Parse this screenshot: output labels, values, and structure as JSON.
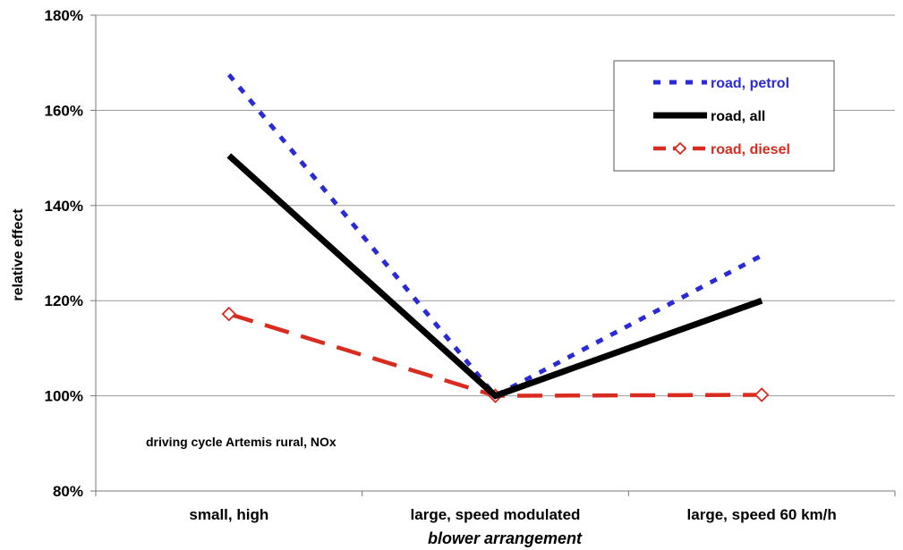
{
  "chart_data": {
    "type": "line",
    "xlabel": "blower arrangement",
    "ylabel": "relative effect",
    "annotation": "driving cycle Artemis rural, NOx",
    "categories": [
      "small, high",
      "large, speed modulated",
      "large, speed 60 km/h"
    ],
    "ylim": [
      80,
      180
    ],
    "y_ticks": [
      "80%",
      "100%",
      "120%",
      "140%",
      "160%",
      "180%"
    ],
    "grid": "horizontal",
    "legend_position": "top-right",
    "series": [
      {
        "name": "road, petrol",
        "values": [
          167.5,
          100,
          129.5
        ],
        "color": "#2b2bd6",
        "style": "dotted"
      },
      {
        "name": "road, all",
        "values": [
          150.5,
          100,
          120
        ],
        "color": "#000000",
        "style": "solid"
      },
      {
        "name": "road, diesel",
        "values": [
          117.2,
          100,
          100.2
        ],
        "color": "#d92b1f",
        "style": "dashed",
        "marker": "diamond"
      }
    ]
  }
}
